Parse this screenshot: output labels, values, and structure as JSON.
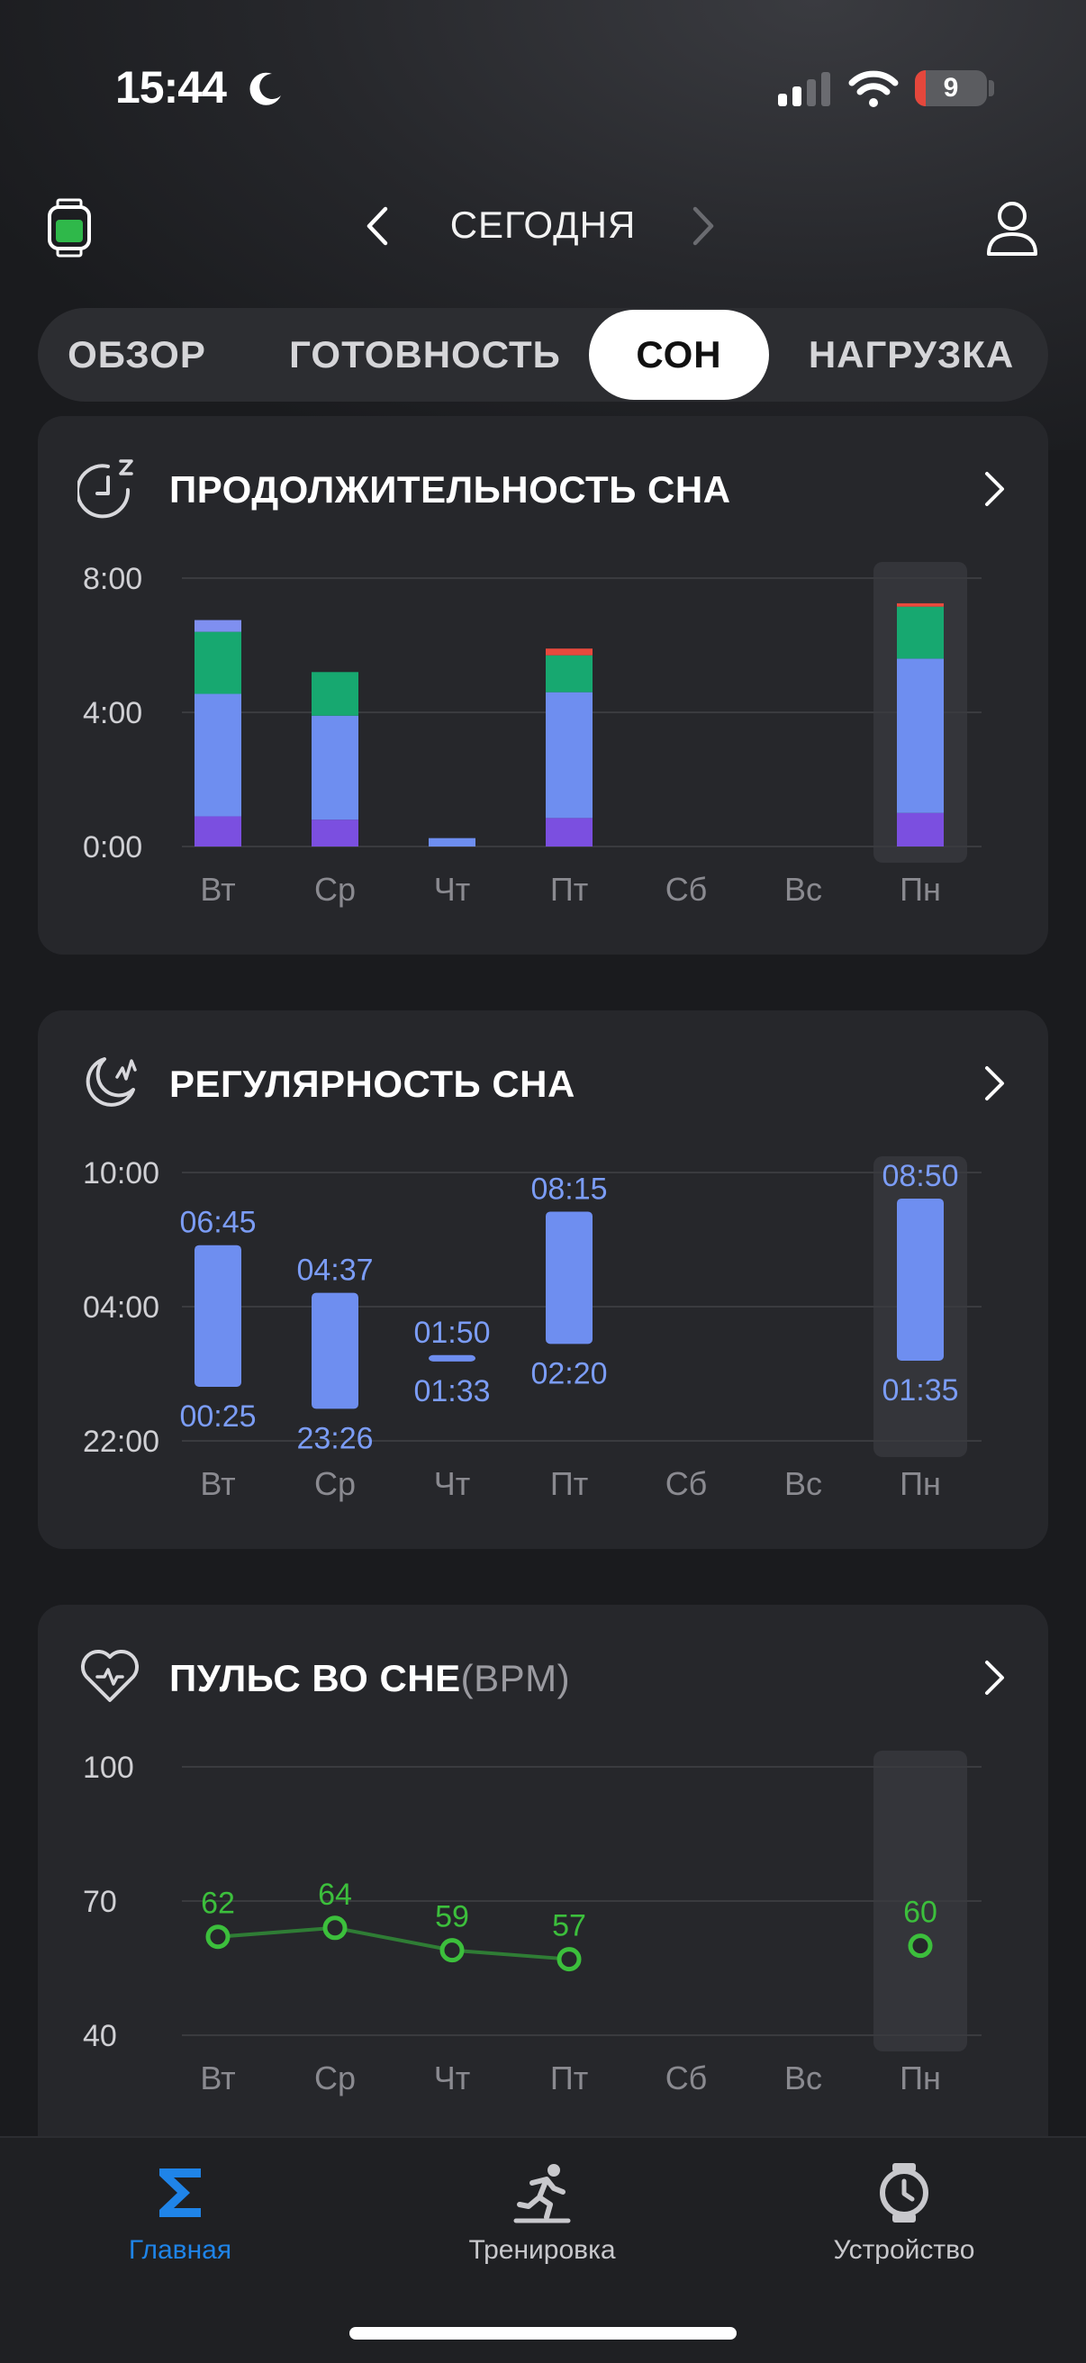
{
  "status": {
    "time": "15:44",
    "battery": "9"
  },
  "header": {
    "date_title": "СЕГОДНЯ"
  },
  "tabs": [
    {
      "label": "ОБЗОР",
      "active": false
    },
    {
      "label": "ГОТОВНОСТЬ",
      "active": false
    },
    {
      "label": "СОН",
      "active": true
    },
    {
      "label": "НАГРУЗКА",
      "active": false
    }
  ],
  "duration_card": {
    "title": "ПРОДОЛЖИТЕЛЬНОСТЬ СНА",
    "icon": "sleep-duration-icon",
    "chart_data": {
      "type": "bar",
      "stacked": true,
      "categories": [
        "Вт",
        "Ср",
        "Чт",
        "Пт",
        "Сб",
        "Вс",
        "Пн"
      ],
      "y_ticks": [
        "8:00",
        "4:00",
        "0:00"
      ],
      "ylim_hours": [
        0,
        8
      ],
      "highlight_category": "Пн",
      "series": [
        {
          "color": "#7b4fe0",
          "values": [
            0.9,
            0.8,
            0,
            0.85,
            0,
            0,
            1.0
          ]
        },
        {
          "color": "#6e8ef0",
          "values": [
            3.65,
            3.1,
            0.25,
            3.75,
            0,
            0,
            4.6
          ]
        },
        {
          "color": "#17a870",
          "values": [
            1.85,
            1.3,
            0,
            1.1,
            0,
            0,
            1.55
          ]
        },
        {
          "color": "#7f8ff0",
          "values": [
            0.35,
            0,
            0,
            0,
            0,
            0,
            0
          ]
        },
        {
          "color": "#e8493d",
          "values": [
            0,
            0,
            0,
            0.2,
            0,
            0,
            0.1
          ]
        }
      ]
    }
  },
  "regularity_card": {
    "title": "РЕГУЛЯРНОСТЬ СНА",
    "icon": "sleep-regularity-icon",
    "chart_data": {
      "type": "range-bar",
      "categories": [
        "Вт",
        "Ср",
        "Чт",
        "Пт",
        "Сб",
        "Вс",
        "Пн"
      ],
      "y_ticks": [
        "10:00",
        "04:00",
        "22:00"
      ],
      "highlight_category": "Пн",
      "ranges": [
        {
          "start": "00:25",
          "end": "06:45"
        },
        {
          "start": "23:26",
          "end": "04:37"
        },
        {
          "start": "01:33",
          "end": "01:50"
        },
        {
          "start": "02:20",
          "end": "08:15"
        },
        null,
        null,
        {
          "start": "01:35",
          "end": "08:50"
        }
      ]
    }
  },
  "pulse_card": {
    "title": "ПУЛЬС ВО СНЕ",
    "unit": "(BPM)",
    "icon": "heart-rate-icon",
    "chart_data": {
      "type": "line",
      "categories": [
        "Вт",
        "Ср",
        "Чт",
        "Пт",
        "Сб",
        "Вс",
        "Пн"
      ],
      "y_ticks": [
        100,
        70,
        40
      ],
      "ylim": [
        40,
        100
      ],
      "highlight_category": "Пн",
      "values": [
        62,
        64,
        59,
        57,
        null,
        null,
        60
      ],
      "color": "#3cbf3c"
    }
  },
  "bottom_nav": [
    {
      "label": "Главная",
      "icon": "sigma-icon",
      "active": true
    },
    {
      "label": "Тренировка",
      "icon": "running-icon",
      "active": false
    },
    {
      "label": "Устройство",
      "icon": "watch-icon",
      "active": false
    }
  ]
}
